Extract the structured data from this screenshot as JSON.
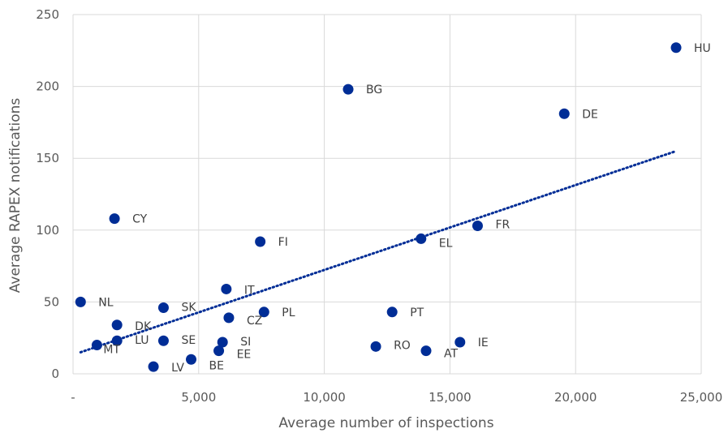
{
  "chart_data": {
    "type": "scatter",
    "title": "",
    "xlabel": "Average number of inspections",
    "ylabel": "Average RAPEX notifications",
    "xlim": [
      0,
      25000
    ],
    "ylim": [
      0,
      250
    ],
    "x_ticks": [
      0,
      5000,
      10000,
      15000,
      20000,
      25000
    ],
    "x_tick_labels": [
      "-",
      "5,000",
      "10,000",
      "15,000",
      "20,000",
      "25,000"
    ],
    "y_ticks": [
      0,
      50,
      100,
      150,
      200,
      250
    ],
    "y_tick_labels": [
      "0",
      "50",
      "100",
      "150",
      "200",
      "250"
    ],
    "grid": true,
    "marker_color": "#002D96",
    "trendline": {
      "type": "linear",
      "style": "dotted",
      "color": "#002D96",
      "x": [
        300,
        24000
      ],
      "y": [
        15,
        155
      ]
    },
    "points": [
      {
        "label": "HU",
        "x": 24000,
        "y": 227
      },
      {
        "label": "BG",
        "x": 10950,
        "y": 198
      },
      {
        "label": "DE",
        "x": 19550,
        "y": 181
      },
      {
        "label": "CY",
        "x": 1650,
        "y": 108
      },
      {
        "label": "FR",
        "x": 16100,
        "y": 103
      },
      {
        "label": "EL",
        "x": 13850,
        "y": 94
      },
      {
        "label": "FI",
        "x": 7450,
        "y": 92
      },
      {
        "label": "IT",
        "x": 6100,
        "y": 59
      },
      {
        "label": "NL",
        "x": 300,
        "y": 50
      },
      {
        "label": "SK",
        "x": 3600,
        "y": 46
      },
      {
        "label": "PT",
        "x": 12700,
        "y": 43
      },
      {
        "label": "PL",
        "x": 7600,
        "y": 43
      },
      {
        "label": "CZ",
        "x": 6200,
        "y": 39
      },
      {
        "label": "DK",
        "x": 1750,
        "y": 34
      },
      {
        "label": "LU",
        "x": 1750,
        "y": 23
      },
      {
        "label": "SE",
        "x": 3600,
        "y": 23
      },
      {
        "label": "SI",
        "x": 5950,
        "y": 22
      },
      {
        "label": "IE",
        "x": 15400,
        "y": 22
      },
      {
        "label": "MT",
        "x": 950,
        "y": 20
      },
      {
        "label": "RO",
        "x": 12050,
        "y": 19
      },
      {
        "label": "EE",
        "x": 5800,
        "y": 16
      },
      {
        "label": "AT",
        "x": 14050,
        "y": 16
      },
      {
        "label": "BE",
        "x": 4700,
        "y": 10
      },
      {
        "label": "LV",
        "x": 3200,
        "y": 5
      }
    ]
  }
}
